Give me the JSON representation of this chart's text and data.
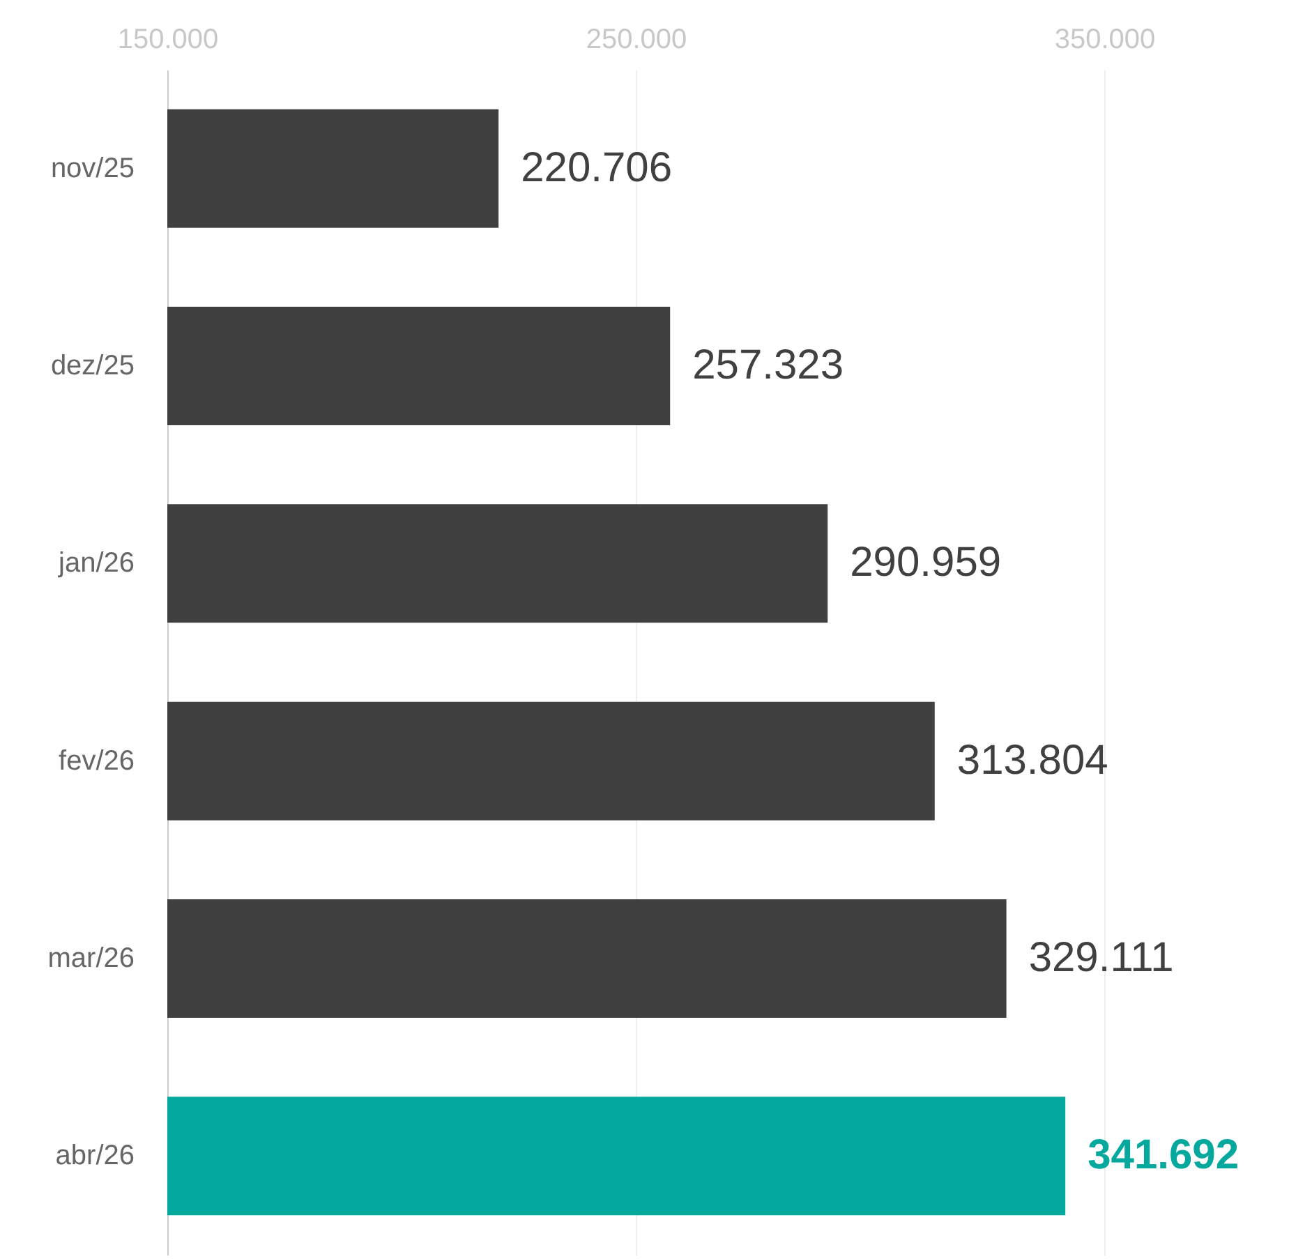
{
  "chart_data": {
    "type": "bar",
    "orientation": "horizontal",
    "categories": [
      "nov/25",
      "dez/25",
      "jan/26",
      "fev/26",
      "mar/26",
      "abr/26"
    ],
    "values": [
      220706,
      257323,
      290959,
      313804,
      329111,
      341692
    ],
    "value_labels": [
      "220.706",
      "257.323",
      "290.959",
      "313.804",
      "329.111",
      "341.692"
    ],
    "colors": [
      "#404040",
      "#404040",
      "#404040",
      "#404040",
      "#404040",
      "#05a89d"
    ],
    "xlim": [
      150000,
      350000
    ],
    "xticks": [
      {
        "value": 150000,
        "label": "150.000"
      },
      {
        "value": 250000,
        "label": "250.000"
      },
      {
        "value": 350000,
        "label": "350.000"
      }
    ],
    "grid": "x"
  }
}
